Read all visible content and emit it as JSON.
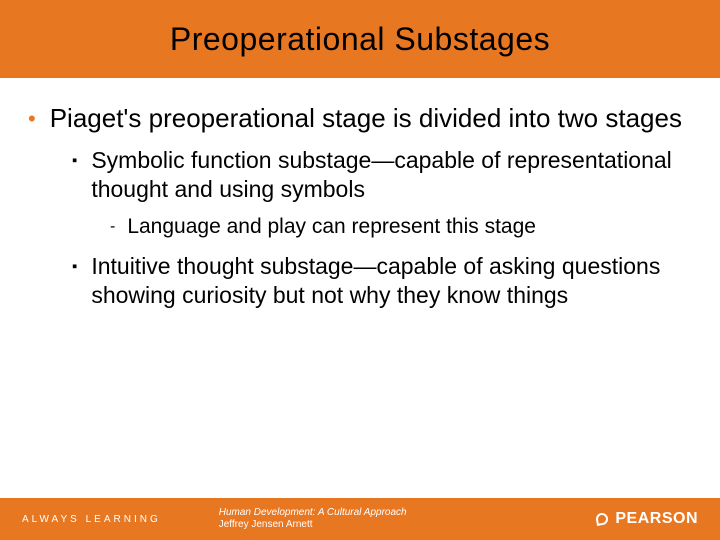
{
  "colors": {
    "accent": "#e87722",
    "text": "#000000",
    "footer_text": "#ffffff",
    "background": "#ffffff"
  },
  "typography": {
    "title_size": 32,
    "l1_size": 26,
    "l2_size": 23,
    "l3_size": 21,
    "footer_size": 10
  },
  "title": "Preoperational Substages",
  "bullets": {
    "l1": "Piaget's preoperational stage is divided into two stages",
    "l2a": "Symbolic function substage—capable of representational thought and using symbols",
    "l3a": "Language and play can represent this stage",
    "l2b": "Intuitive thought substage—capable of asking questions showing curiosity but not why they know things"
  },
  "footer": {
    "tagline": "ALWAYS LEARNING",
    "book_title": "Human Development: A Cultural Approach",
    "author": "Jeffrey Jensen Arnett",
    "brand": "PEARSON"
  }
}
